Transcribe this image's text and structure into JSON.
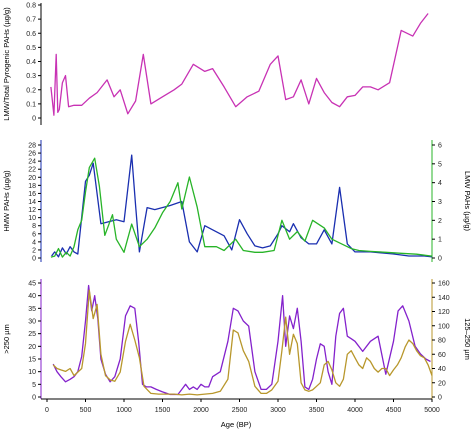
{
  "chart_data": [
    {
      "type": "line",
      "x_shared": true,
      "xlabel": "Age (BP)",
      "xlim": [
        0,
        5000
      ],
      "xticks": [
        "0",
        "500",
        "1000",
        "1500",
        "2000",
        "2500",
        "3000",
        "3500",
        "4000",
        "4500",
        "5000"
      ],
      "ylabel": "LMW/Total Pyrogenic PAHs (µg/g)",
      "ylim": [
        0,
        0.8
      ],
      "yticks": [
        "0",
        "0.1",
        "0.2",
        "0.3",
        "0.4",
        "0.5",
        "0.6",
        "0.7",
        "0.8"
      ],
      "grid": false,
      "series": [
        {
          "color": "#c832b4",
          "x": [
            50,
            90,
            120,
            140,
            160,
            200,
            240,
            280,
            350,
            450,
            550,
            650,
            780,
            870,
            950,
            1050,
            1150,
            1250,
            1350,
            1500,
            1650,
            1750,
            1900,
            2050,
            2150,
            2300,
            2450,
            2600,
            2750,
            2900,
            3000,
            3100,
            3200,
            3300,
            3400,
            3500,
            3600,
            3700,
            3800,
            3900,
            4000,
            4100,
            4200,
            4300,
            4450,
            4600,
            4750,
            4850,
            4950
          ],
          "y": [
            0.22,
            0.02,
            0.45,
            0.04,
            0.06,
            0.25,
            0.3,
            0.08,
            0.09,
            0.09,
            0.14,
            0.18,
            0.27,
            0.15,
            0.2,
            0.03,
            0.12,
            0.45,
            0.1,
            0.15,
            0.2,
            0.24,
            0.38,
            0.33,
            0.35,
            0.22,
            0.08,
            0.15,
            0.19,
            0.38,
            0.44,
            0.13,
            0.15,
            0.27,
            0.1,
            0.28,
            0.18,
            0.11,
            0.08,
            0.15,
            0.16,
            0.22,
            0.22,
            0.2,
            0.25,
            0.62,
            0.58,
            0.67,
            0.74
          ]
        }
      ]
    },
    {
      "type": "line",
      "x_shared": true,
      "xlabel": "Age (BP)",
      "xlim": [
        0,
        5000
      ],
      "ylabel": "HMW PAHs (µg/g)",
      "ylim": [
        0,
        28
      ],
      "yticks": [
        "0",
        "2",
        "4",
        "6",
        "8",
        "10",
        "12",
        "14",
        "16",
        "18",
        "20",
        "22",
        "24",
        "26",
        "28"
      ],
      "y2label": "LMW PAHs (µg/g)",
      "y2lim": [
        0,
        6
      ],
      "y2ticks": [
        "0",
        "1",
        "2",
        "3",
        "4",
        "5",
        "6"
      ],
      "grid": false,
      "series": [
        {
          "axis": "left",
          "color": "#1a2fb0",
          "x": [
            60,
            100,
            150,
            200,
            250,
            300,
            350,
            400,
            500,
            550,
            600,
            700,
            800,
            900,
            1000,
            1100,
            1150,
            1200,
            1300,
            1400,
            1600,
            1750,
            1850,
            1950,
            2050,
            2150,
            2300,
            2400,
            2500,
            2600,
            2700,
            2800,
            2900,
            3000,
            3050,
            3150,
            3200,
            3300,
            3400,
            3500,
            3600,
            3700,
            3800,
            3900,
            4000,
            4200,
            4500,
            4700,
            4900,
            5000
          ],
          "y": [
            0.5,
            1.5,
            0.3,
            2.5,
            1.0,
            2.8,
            1.5,
            1.0,
            19.0,
            20.5,
            23.5,
            8.5,
            9.0,
            9.5,
            9.0,
            25.5,
            13.0,
            1.5,
            12.5,
            12.0,
            13.0,
            14.0,
            4.0,
            1.5,
            8.0,
            7.0,
            5.5,
            2.0,
            9.5,
            6.0,
            3.0,
            2.5,
            3.0,
            6.0,
            8.0,
            6.5,
            8.5,
            5.0,
            3.5,
            3.5,
            7.0,
            3.5,
            17.5,
            3.5,
            1.5,
            1.5,
            1.0,
            0.5,
            0.5,
            0.3
          ]
        },
        {
          "axis": "right",
          "color": "#28b428",
          "x": [
            50,
            100,
            150,
            200,
            250,
            300,
            350,
            400,
            450,
            500,
            550,
            620,
            680,
            750,
            850,
            900,
            1000,
            1100,
            1200,
            1300,
            1400,
            1500,
            1600,
            1700,
            1750,
            1850,
            1950,
            2050,
            2200,
            2300,
            2450,
            2550,
            2700,
            2800,
            2950,
            3050,
            3150,
            3250,
            3350,
            3450,
            3600,
            3700,
            3800,
            3950,
            4050,
            4200,
            4400,
            4600,
            4800,
            5000
          ],
          "y": [
            0.05,
            0.1,
            0.5,
            0.05,
            0.3,
            0.1,
            0.6,
            1.5,
            2.0,
            3.5,
            4.8,
            5.3,
            3.8,
            1.2,
            2.3,
            1.0,
            0.3,
            1.8,
            0.6,
            1.0,
            1.6,
            2.4,
            3.0,
            4.0,
            2.6,
            4.3,
            2.7,
            0.6,
            0.6,
            0.4,
            1.0,
            0.4,
            0.3,
            0.3,
            0.4,
            2.0,
            1.0,
            1.4,
            0.9,
            2.0,
            1.6,
            1.0,
            0.8,
            0.5,
            0.4,
            0.35,
            0.3,
            0.25,
            0.2,
            0.1
          ]
        }
      ]
    },
    {
      "type": "line",
      "x_shared": true,
      "xlabel": "Age (BP)",
      "xlim": [
        0,
        5000
      ],
      "xticks": [
        "0",
        "500",
        "1000",
        "1500",
        "2000",
        "2500",
        "3000",
        "3500",
        "4000",
        "4500",
        "5000"
      ],
      "ylabel": ">250 µm",
      "ylim": [
        0,
        45
      ],
      "yticks": [
        "0",
        "5",
        "10",
        "15",
        "20",
        "25",
        "30",
        "35",
        "40",
        "45"
      ],
      "y2label": "125–250 µm",
      "y2lim": [
        0,
        160
      ],
      "y2ticks": [
        "0",
        "20",
        "40",
        "60",
        "80",
        "100",
        "120",
        "140",
        "160"
      ],
      "grid": false,
      "series": [
        {
          "axis": "left",
          "color": "#8422cc",
          "x": [
            80,
            130,
            180,
            240,
            300,
            350,
            400,
            450,
            500,
            540,
            580,
            620,
            660,
            700,
            760,
            820,
            880,
            950,
            1020,
            1080,
            1140,
            1190,
            1240,
            1290,
            1350,
            1420,
            1500,
            1600,
            1700,
            1750,
            1800,
            1850,
            1900,
            1950,
            2000,
            2050,
            2100,
            2150,
            2250,
            2350,
            2420,
            2480,
            2550,
            2620,
            2700,
            2780,
            2850,
            2920,
            3000,
            3060,
            3100,
            3150,
            3200,
            3250,
            3300,
            3350,
            3400,
            3450,
            3500,
            3550,
            3600,
            3650,
            3700,
            3750,
            3800,
            3850,
            3900,
            3950,
            4000,
            4100,
            4200,
            4300,
            4400,
            4500,
            4560,
            4620,
            4700,
            4780,
            4850,
            4920,
            4980
          ],
          "y": [
            13,
            10,
            8,
            6,
            7,
            8,
            10,
            16,
            30,
            44,
            34,
            40,
            31,
            15,
            9,
            6,
            8,
            15,
            32,
            36,
            35,
            22,
            5,
            4,
            4,
            3,
            2,
            1,
            1,
            3,
            5,
            3,
            4,
            3,
            5,
            4,
            4,
            8,
            10,
            22,
            35,
            34,
            30,
            28,
            10,
            3,
            3,
            5,
            22,
            40,
            20,
            32,
            27,
            35,
            22,
            4,
            3,
            7,
            15,
            21,
            20,
            10,
            5,
            24,
            33,
            35,
            24,
            23,
            22,
            18,
            22,
            24,
            9,
            22,
            34,
            36,
            30,
            20,
            17,
            15,
            14
          ]
        },
        {
          "axis": "right",
          "color": "#b8972c",
          "x": [
            80,
            130,
            180,
            240,
            300,
            350,
            400,
            450,
            500,
            550,
            600,
            650,
            700,
            760,
            820,
            880,
            950,
            1020,
            1080,
            1140,
            1200,
            1260,
            1350,
            1450,
            1550,
            1650,
            1750,
            1850,
            1950,
            2050,
            2150,
            2250,
            2350,
            2420,
            2480,
            2550,
            2620,
            2700,
            2780,
            2850,
            2920,
            3000,
            3050,
            3100,
            3150,
            3200,
            3250,
            3300,
            3350,
            3400,
            3450,
            3500,
            3550,
            3600,
            3650,
            3700,
            3750,
            3800,
            3850,
            3900,
            3950,
            4000,
            4050,
            4100,
            4150,
            4200,
            4250,
            4300,
            4350,
            4400,
            4450,
            4500,
            4550,
            4600,
            4650,
            4700,
            4750,
            4800,
            4850,
            4900,
            4950,
            5000
          ],
          "y": [
            45,
            40,
            38,
            36,
            40,
            30,
            35,
            40,
            75,
            150,
            110,
            130,
            60,
            30,
            24,
            22,
            35,
            78,
            102,
            80,
            55,
            15,
            5,
            4,
            4,
            4,
            3,
            4,
            3,
            4,
            5,
            8,
            25,
            94,
            90,
            65,
            50,
            15,
            5,
            5,
            10,
            22,
            65,
            112,
            60,
            88,
            75,
            20,
            10,
            8,
            10,
            15,
            20,
            45,
            50,
            38,
            20,
            15,
            25,
            60,
            65,
            55,
            45,
            40,
            55,
            50,
            40,
            35,
            40,
            40,
            30,
            38,
            45,
            55,
            70,
            80,
            75,
            65,
            58,
            55,
            45,
            30
          ]
        }
      ]
    }
  ]
}
